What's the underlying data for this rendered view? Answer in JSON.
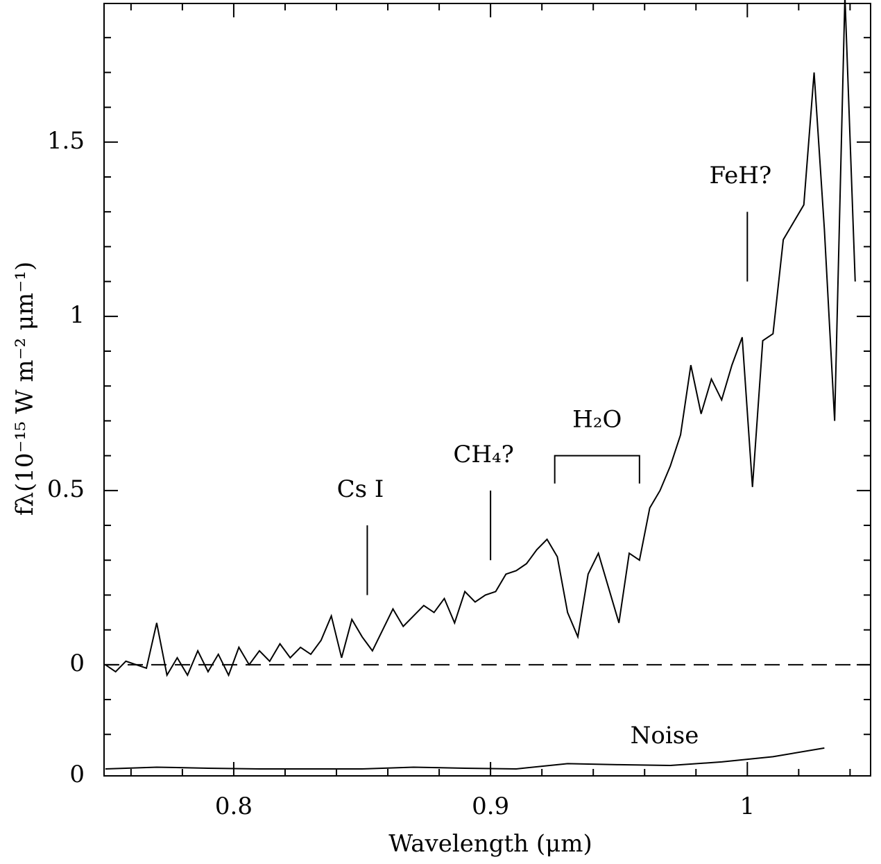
{
  "chart_data": {
    "type": "line",
    "xlabel": "Wavelength (μm)",
    "ylabel": "fλ(10⁻¹⁵ W m⁻² μm⁻¹)",
    "xlim": [
      0.7495,
      1.048
    ],
    "ylim": [
      -0.319,
      1.898
    ],
    "y2lim": [
      0,
      2.217
    ],
    "xticks": [
      0.8,
      0.9,
      1
    ],
    "yticks": [
      0,
      0.5,
      1,
      1.5
    ],
    "y2ticks": [
      0
    ],
    "minor_xticks": [
      0.76,
      0.78,
      0.82,
      0.84,
      0.86,
      0.88,
      0.92,
      0.94,
      0.96,
      0.98,
      1.02,
      1.04
    ],
    "minor_yticks": [
      -0.2,
      -0.1,
      0.1,
      0.2,
      0.3,
      0.4,
      0.6,
      0.7,
      0.8,
      0.9,
      1.1,
      1.2,
      1.3,
      1.4,
      1.6,
      1.7,
      1.8
    ],
    "zero_line": true,
    "series": [
      {
        "color": "#000000",
        "x": [
          0.75,
          0.754,
          0.758,
          0.762,
          0.766,
          0.77,
          0.774,
          0.778,
          0.782,
          0.786,
          0.79,
          0.794,
          0.798,
          0.802,
          0.806,
          0.81,
          0.814,
          0.818,
          0.822,
          0.826,
          0.83,
          0.834,
          0.838,
          0.842,
          0.846,
          0.85,
          0.854,
          0.858,
          0.862,
          0.866,
          0.87,
          0.874,
          0.878,
          0.882,
          0.886,
          0.89,
          0.894,
          0.898,
          0.902,
          0.906,
          0.91,
          0.914,
          0.918,
          0.922,
          0.926,
          0.93,
          0.934,
          0.938,
          0.942,
          0.946,
          0.95,
          0.954,
          0.958,
          0.962,
          0.966,
          0.97,
          0.974,
          0.978,
          0.982,
          0.986,
          0.99,
          0.994,
          0.998,
          1.002,
          1.006,
          1.01,
          1.014,
          1.018,
          1.022,
          1.026,
          1.03,
          1.034,
          1.038,
          1.042
        ],
        "values": [
          0.0,
          -0.02,
          0.01,
          0.0,
          -0.01,
          0.12,
          -0.03,
          0.02,
          -0.03,
          0.04,
          -0.02,
          0.03,
          -0.03,
          0.05,
          0.0,
          0.04,
          0.01,
          0.06,
          0.02,
          0.05,
          0.03,
          0.07,
          0.14,
          0.02,
          0.13,
          0.08,
          0.04,
          0.1,
          0.16,
          0.11,
          0.14,
          0.17,
          0.15,
          0.19,
          0.12,
          0.21,
          0.18,
          0.2,
          0.21,
          0.26,
          0.27,
          0.29,
          0.33,
          0.36,
          0.31,
          0.15,
          0.08,
          0.26,
          0.32,
          0.22,
          0.12,
          0.32,
          0.3,
          0.45,
          0.5,
          0.57,
          0.66,
          0.86,
          0.72,
          0.82,
          0.76,
          0.86,
          0.94,
          0.51,
          0.93,
          0.95,
          1.22,
          1.27,
          1.32,
          1.7,
          1.25,
          0.7,
          1.92,
          1.1
        ]
      },
      {
        "name": "Noise",
        "color": "#000000",
        "axis": "y2",
        "x": [
          0.75,
          0.77,
          0.79,
          0.81,
          0.83,
          0.85,
          0.87,
          0.89,
          0.91,
          0.93,
          0.95,
          0.97,
          0.99,
          1.01,
          1.03
        ],
        "values": [
          0.02,
          0.025,
          0.022,
          0.02,
          0.02,
          0.02,
          0.025,
          0.022,
          0.02,
          0.035,
          0.032,
          0.03,
          0.04,
          0.055,
          0.08
        ]
      }
    ],
    "annotations": [
      {
        "text": "Cs I",
        "x": 0.852,
        "y": [
          0.2,
          0.4
        ]
      },
      {
        "text": "CH₄?",
        "x": 0.9,
        "y": [
          0.3,
          0.5
        ]
      },
      {
        "text": "H₂O",
        "x": [
          0.925,
          0.958
        ],
        "y": [
          0.52,
          0.6
        ]
      },
      {
        "text": "FeH?",
        "x": 1.0,
        "y": [
          1.1,
          1.3
        ]
      }
    ]
  }
}
